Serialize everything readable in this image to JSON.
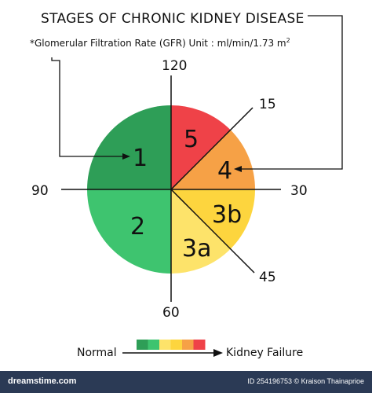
{
  "title": "STAGES OF CHRONIC KIDNEY DISEASE",
  "subtitle": "*Glomerular Filtration Rate (GFR) Unit : ml/min/1.73 m",
  "subtitle_sup": "2",
  "ticks": {
    "top": "120",
    "upper_right": "15",
    "right": "30",
    "lower_right": "45",
    "bottom": "60",
    "left": "90"
  },
  "stages": {
    "s1": "1",
    "s2": "2",
    "s3a": "3a",
    "s3b": "3b",
    "s4": "4",
    "s5": "5"
  },
  "colors": {
    "stage1": "#2e9e57",
    "stage2": "#3ec46f",
    "stage3a": "#fde36a",
    "stage3b": "#fdd53e",
    "stage4": "#f6a146",
    "stage5": "#ef4248"
  },
  "legend": {
    "left_label": "Normal",
    "right_label": "Kidney Failure",
    "swatches": [
      "#2e9e57",
      "#3ec46f",
      "#fde36a",
      "#fdd53e",
      "#f6a146",
      "#ef4248"
    ]
  },
  "footer": {
    "brand": "dreamstime.com",
    "id_text": "ID 254196753 © Kraison Thainaprioe"
  }
}
